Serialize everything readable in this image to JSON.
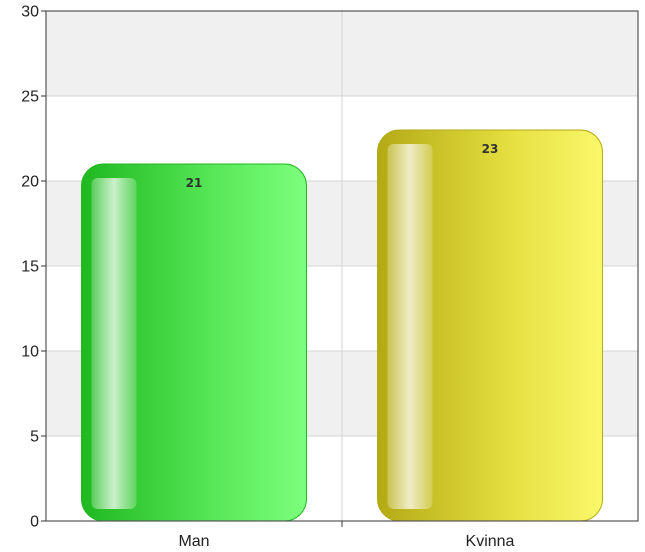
{
  "chart_data": {
    "type": "bar",
    "categories": [
      "Man",
      "Kvinna"
    ],
    "values": [
      21,
      23
    ],
    "data_labels": [
      "21",
      "23"
    ],
    "ylim": [
      0,
      30
    ],
    "yticks": [
      0,
      5,
      10,
      15,
      20,
      25,
      30
    ],
    "ytick_labels": [
      "0",
      "5",
      "10",
      "15",
      "20",
      "25",
      "30"
    ],
    "grid": true,
    "colors": {
      "Man": [
        "#1fb81f",
        "#58e858",
        "#7dff7d"
      ],
      "Kvinna": [
        "#b3aa14",
        "#e6e042",
        "#faf86a"
      ]
    },
    "band_colors": [
      "#ffffff",
      "#f0f0f0"
    ]
  }
}
